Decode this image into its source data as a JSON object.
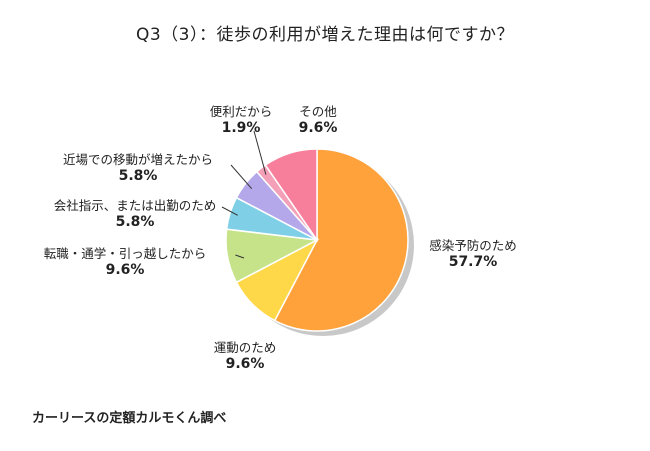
{
  "title": "Q3（3）：徒歩の利用が増えた理由は何ですか？",
  "source": "カーリースの定額カルモくん調べ",
  "chart_data": {
    "type": "pie",
    "title": "Q3（3）：徒歩の利用が増えた理由は何ですか？",
    "slices": [
      {
        "label": "感染予防のため",
        "value": 57.7,
        "display": "57.7%",
        "color": "#ffa23c"
      },
      {
        "label": "運動のため",
        "value": 9.6,
        "display": "9.6%",
        "color": "#ffd84a"
      },
      {
        "label": "転職・通学・引っ越したから",
        "value": 9.6,
        "display": "9.6%",
        "color": "#c6e38a"
      },
      {
        "label": "会社指示、または出勤のため",
        "value": 5.8,
        "display": "5.8%",
        "color": "#7fd0e6"
      },
      {
        "label": "近場での移動が増えたから",
        "value": 5.8,
        "display": "5.8%",
        "color": "#b4a8ea"
      },
      {
        "label": "便利だから",
        "value": 1.9,
        "display": "1.9%",
        "color": "#f3a0b8"
      },
      {
        "label": "その他",
        "value": 9.6,
        "display": "9.6%",
        "color": "#f77f9b"
      }
    ]
  }
}
